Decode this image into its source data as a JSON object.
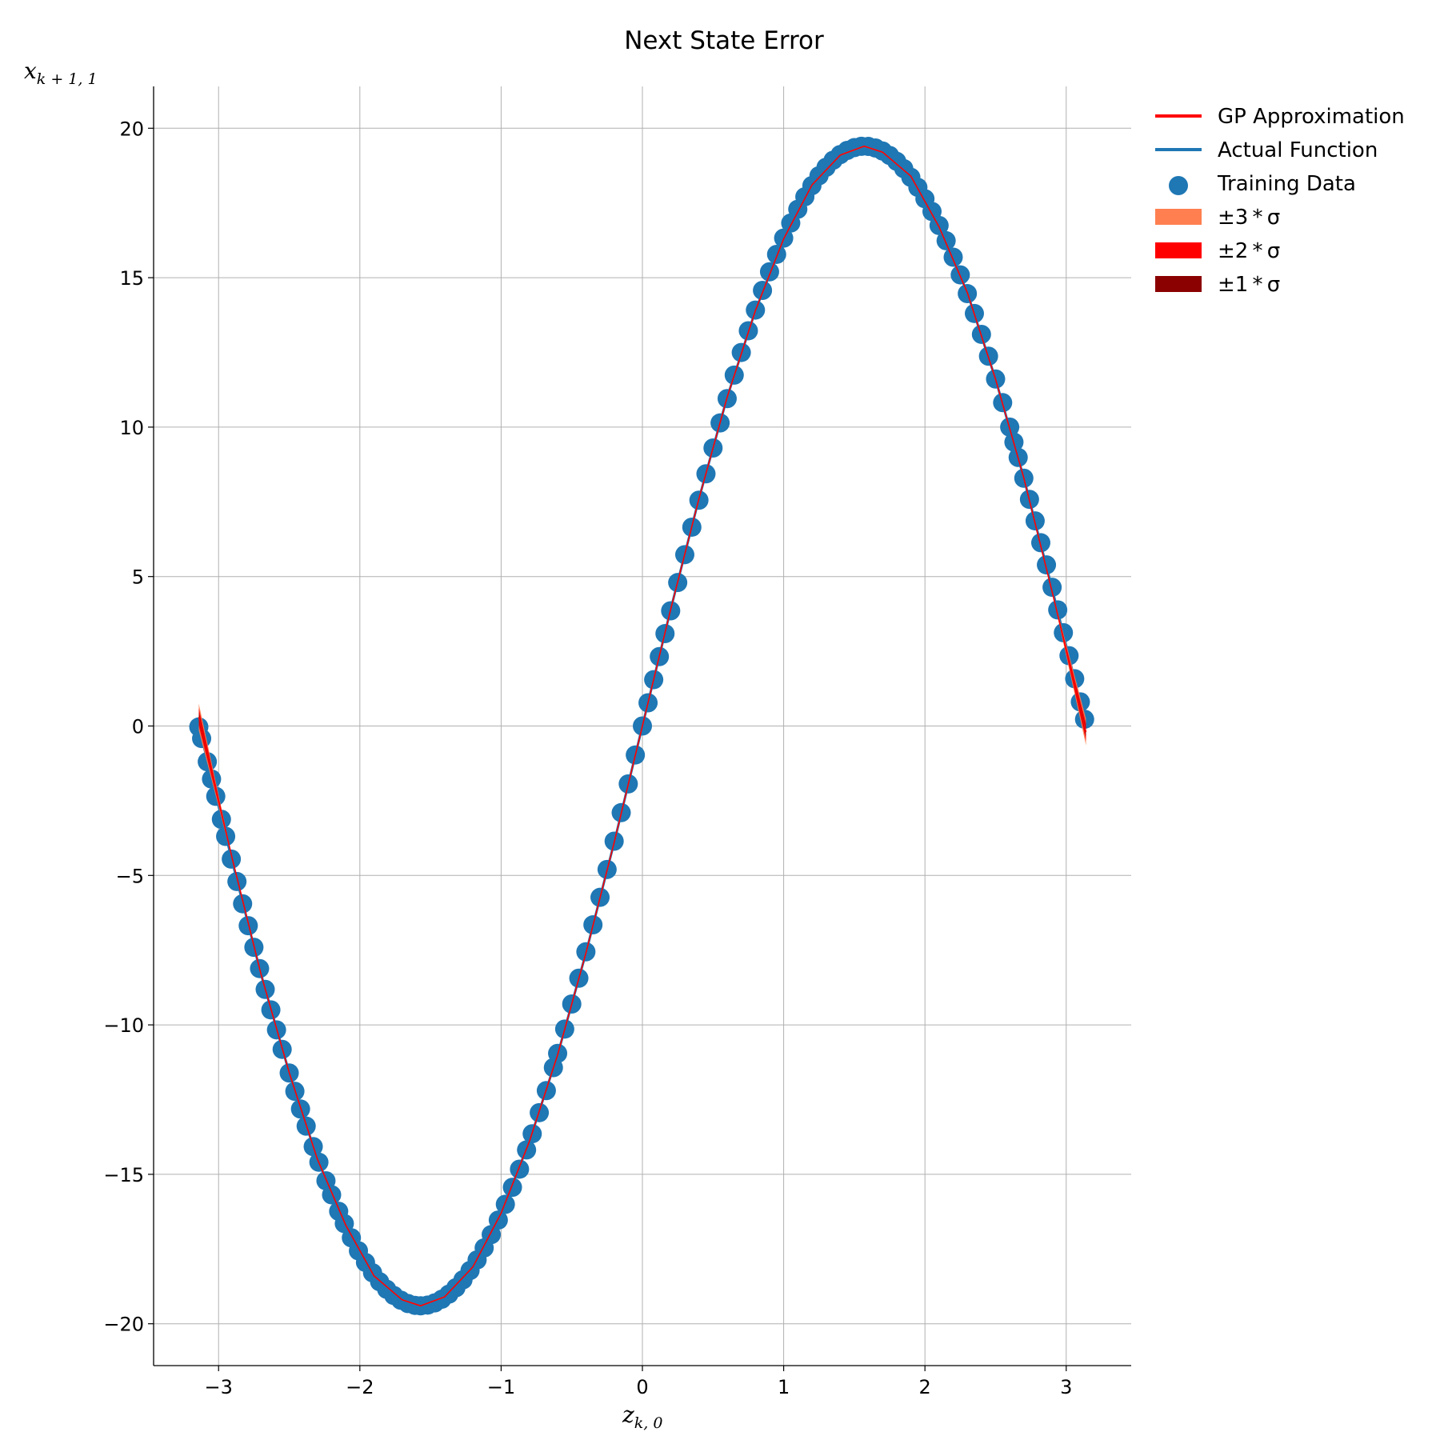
{
  "chart_data": {
    "type": "scatter",
    "title": "Next State Error",
    "xlabel": "z",
    "xlabel_sub": "k, 0",
    "ylabel": "x",
    "ylabel_sub": "k + 1, 1",
    "xlim": [
      -3.46,
      3.46
    ],
    "ylim": [
      -21.4,
      21.4
    ],
    "x_ticks": [
      -3,
      -2,
      -1,
      0,
      1,
      2,
      3
    ],
    "x_tick_labels": [
      "−3",
      "−2",
      "−1",
      "0",
      "1",
      "2",
      "3"
    ],
    "y_ticks": [
      20,
      15,
      10,
      5,
      0,
      -5,
      -10,
      -15,
      -20
    ],
    "y_tick_labels": [
      "20",
      "15",
      "10",
      "5",
      "0",
      "−5",
      "−10",
      "−15",
      "−20"
    ],
    "grid": true,
    "legend_position": "outside-top-right",
    "colors": {
      "gp": "#ff0000",
      "actual": "#1f77b4",
      "training": "#1f77b4",
      "sigma3": "#ff7f50",
      "sigma2": "#ff0000",
      "sigma1": "#8b0000",
      "grid": "#b0b0b0"
    },
    "series": [
      {
        "name": "Actual Function",
        "kind": "line",
        "x": [
          -3.14,
          -2.9,
          -2.7,
          -2.5,
          -2.3,
          -2.1,
          -1.9,
          -1.7,
          -1.57,
          -1.4,
          -1.2,
          -1.0,
          -0.8,
          -0.6,
          -0.4,
          -0.2,
          0.0,
          0.2,
          0.4,
          0.6,
          0.8,
          1.0,
          1.2,
          1.4,
          1.57,
          1.7,
          1.9,
          2.1,
          2.3,
          2.5,
          2.7,
          2.9,
          3.14
        ],
        "y": [
          0.0,
          -4.6,
          -8.3,
          -11.6,
          -14.5,
          -16.7,
          -18.4,
          -19.2,
          -19.4,
          -19.1,
          -18.1,
          -16.3,
          -13.9,
          -11.0,
          -7.6,
          -3.9,
          0.0,
          3.9,
          7.6,
          11.0,
          13.9,
          16.3,
          18.1,
          19.1,
          19.4,
          19.2,
          18.4,
          16.7,
          14.5,
          11.6,
          8.3,
          4.6,
          0.0
        ]
      },
      {
        "name": "GP Approximation",
        "kind": "line",
        "x": [
          -3.14,
          -2.9,
          -2.7,
          -2.5,
          -2.3,
          -2.1,
          -1.9,
          -1.7,
          -1.57,
          -1.4,
          -1.2,
          -1.0,
          -0.8,
          -0.6,
          -0.4,
          -0.2,
          0.0,
          0.2,
          0.4,
          0.6,
          0.8,
          1.0,
          1.2,
          1.4,
          1.57,
          1.7,
          1.9,
          2.1,
          2.3,
          2.5,
          2.7,
          2.9,
          3.14
        ],
        "y": [
          0.3,
          -4.5,
          -8.3,
          -11.6,
          -14.5,
          -16.7,
          -18.4,
          -19.2,
          -19.4,
          -19.1,
          -18.1,
          -16.3,
          -13.9,
          -11.0,
          -7.6,
          -3.9,
          0.0,
          3.9,
          7.6,
          11.0,
          13.9,
          16.3,
          18.1,
          19.1,
          19.4,
          19.2,
          18.4,
          16.7,
          14.5,
          11.6,
          8.3,
          4.5,
          -0.2
        ]
      },
      {
        "name": "Training Data",
        "kind": "scatter",
        "amplitude": 19.4,
        "x": [
          -3.14,
          -3.12,
          -3.08,
          -3.05,
          -3.02,
          -2.98,
          -2.95,
          -2.91,
          -2.87,
          -2.83,
          -2.79,
          -2.75,
          -2.71,
          -2.67,
          -2.63,
          -2.59,
          -2.55,
          -2.5,
          -2.46,
          -2.42,
          -2.38,
          -2.33,
          -2.29,
          -2.24,
          -2.2,
          -2.15,
          -2.11,
          -2.06,
          -2.01,
          -1.96,
          -1.91,
          -1.86,
          -1.81,
          -1.76,
          -1.71,
          -1.66,
          -1.61,
          -1.57,
          -1.52,
          -1.47,
          -1.42,
          -1.37,
          -1.32,
          -1.27,
          -1.22,
          -1.17,
          -1.12,
          -1.07,
          -1.02,
          -0.97,
          -0.92,
          -0.87,
          -0.82,
          -0.78,
          -0.73,
          -0.68,
          -0.63,
          -0.6,
          -0.55,
          -0.5,
          -0.45,
          -0.4,
          -0.35,
          -0.3,
          -0.25,
          -0.2,
          -0.15,
          -0.1,
          -0.05,
          0.0,
          0.04,
          0.08,
          0.12,
          0.16,
          0.2,
          0.25,
          0.3,
          0.35,
          0.4,
          0.45,
          0.5,
          0.55,
          0.6,
          0.65,
          0.7,
          0.75,
          0.8,
          0.85,
          0.9,
          0.95,
          1.0,
          1.05,
          1.1,
          1.15,
          1.2,
          1.25,
          1.3,
          1.35,
          1.4,
          1.45,
          1.5,
          1.55,
          1.6,
          1.65,
          1.7,
          1.75,
          1.8,
          1.85,
          1.9,
          1.95,
          2.0,
          2.05,
          2.1,
          2.15,
          2.2,
          2.25,
          2.3,
          2.35,
          2.4,
          2.45,
          2.5,
          2.55,
          2.6,
          2.63,
          2.66,
          2.7,
          2.74,
          2.78,
          2.82,
          2.86,
          2.9,
          2.94,
          2.98,
          3.02,
          3.06,
          3.1,
          3.13
        ]
      }
    ]
  },
  "legend": {
    "items": [
      {
        "label": "GP Approximation",
        "kind": "line",
        "color": "#ff0000"
      },
      {
        "label": "Actual Function",
        "kind": "line",
        "color": "#1f77b4"
      },
      {
        "label": "Training Data",
        "kind": "marker",
        "color": "#1f77b4"
      },
      {
        "label": "±3 * σ",
        "kind": "patch",
        "color": "#ff7f50"
      },
      {
        "label": "±2 * σ",
        "kind": "patch",
        "color": "#ff0000"
      },
      {
        "label": "±1 * σ",
        "kind": "patch",
        "color": "#8b0000"
      }
    ]
  }
}
